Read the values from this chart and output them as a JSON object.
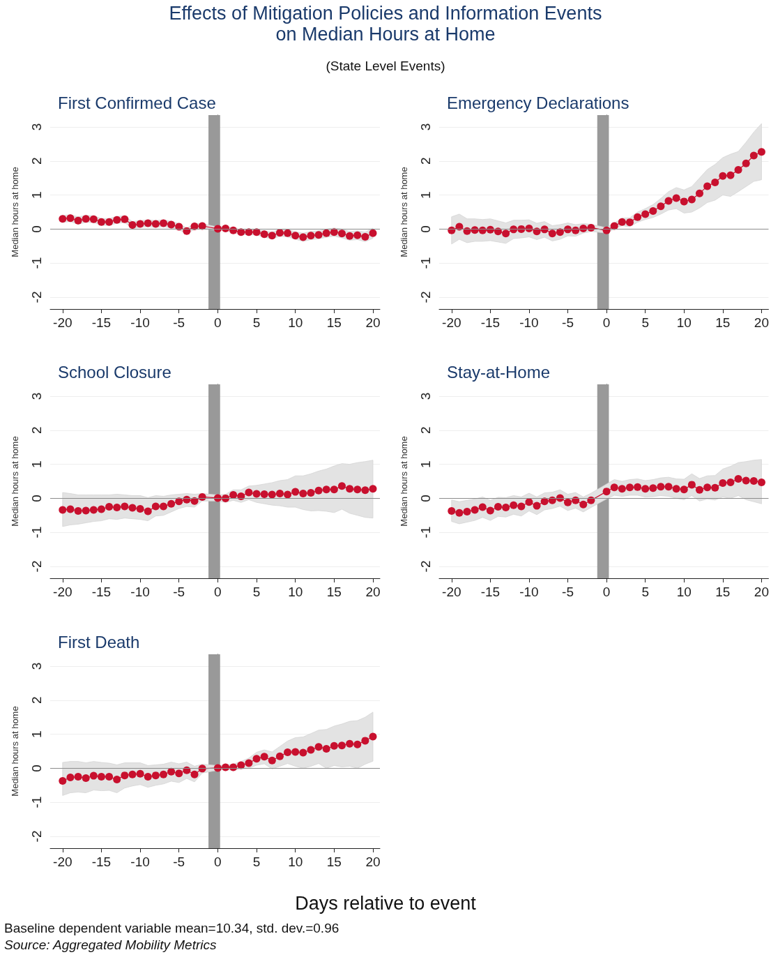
{
  "chart_data": [
    {
      "type": "other",
      "title": "Effects of Mitigation Policies and Information Events\non Median Hours at Home",
      "subtitle": "(State Level Events)",
      "annotations": [
        "Days relative to event",
        "Baseline dependent variable mean=10.34, std. dev.=0.96",
        "Source: Aggregated Mobility Metrics"
      ]
    },
    {
      "type": "line",
      "title": "First Confirmed Case",
      "ylabel": "Median hours at home",
      "xlim": [
        -21.6,
        20.9
      ],
      "xticks": [
        -20,
        -15,
        -10,
        -5,
        0,
        5,
        10,
        15,
        20
      ],
      "ylim": [
        -2.35,
        3.35
      ],
      "yticks": [
        -2,
        -1,
        0,
        1,
        2,
        3
      ],
      "grid": "y",
      "marker": "circle",
      "line_style": "solid",
      "ref_lines": [
        {
          "axis": "y",
          "value": 0,
          "color": "#8c8c8c"
        }
      ],
      "bands": [
        {
          "axis": "x",
          "from": -1.2,
          "to": 0.3,
          "color": "#999999"
        }
      ],
      "x": [
        -20,
        -19,
        -18,
        -17,
        -16,
        -15,
        -14,
        -13,
        -12,
        -11,
        -10,
        -9,
        -8,
        -7,
        -6,
        -5,
        -4,
        -3,
        -2,
        0,
        1,
        2,
        3,
        4,
        5,
        6,
        7,
        8,
        9,
        10,
        11,
        12,
        13,
        14,
        15,
        16,
        17,
        18,
        19,
        20
      ],
      "series": [
        {
          "color": "#c8102e",
          "values": [
            0.3,
            0.32,
            0.25,
            0.3,
            0.29,
            0.21,
            0.21,
            0.27,
            0.29,
            0.12,
            0.15,
            0.17,
            0.15,
            0.17,
            0.13,
            0.07,
            -0.06,
            0.08,
            0.09,
            0.01,
            0.02,
            -0.04,
            -0.09,
            -0.09,
            -0.09,
            -0.15,
            -0.19,
            -0.11,
            -0.12,
            -0.19,
            -0.24,
            -0.19,
            -0.17,
            -0.12,
            -0.09,
            -0.13,
            -0.2,
            -0.18,
            -0.23,
            -0.12
          ],
          "upper": [
            0.4,
            0.42,
            0.36,
            0.4,
            0.39,
            0.31,
            0.31,
            0.37,
            0.39,
            0.22,
            0.25,
            0.27,
            0.25,
            0.27,
            0.23,
            0.16,
            0.03,
            0.16,
            0.16,
            0.06,
            0.08,
            0.03,
            -0.02,
            -0.01,
            -0.01,
            -0.06,
            -0.09,
            -0.01,
            -0.01,
            -0.08,
            -0.12,
            -0.07,
            -0.05,
            0.0,
            0.03,
            0.0,
            -0.07,
            -0.05,
            -0.09,
            0.03
          ],
          "lower": [
            0.2,
            0.22,
            0.14,
            0.2,
            0.19,
            0.11,
            0.11,
            0.17,
            0.19,
            0.02,
            0.05,
            0.07,
            0.05,
            0.07,
            0.03,
            -0.02,
            -0.15,
            0.0,
            0.02,
            -0.04,
            -0.04,
            -0.11,
            -0.16,
            -0.17,
            -0.17,
            -0.24,
            -0.29,
            -0.21,
            -0.23,
            -0.3,
            -0.36,
            -0.31,
            -0.29,
            -0.24,
            -0.21,
            -0.26,
            -0.33,
            -0.31,
            -0.37,
            -0.27
          ]
        }
      ]
    },
    {
      "type": "line",
      "title": "Emergency Declarations",
      "ylabel": "Median hours at home",
      "xlim": [
        -21.6,
        20.9
      ],
      "xticks": [
        -20,
        -15,
        -10,
        -5,
        0,
        5,
        10,
        15,
        20
      ],
      "ylim": [
        -2.35,
        3.35
      ],
      "yticks": [
        -2,
        -1,
        0,
        1,
        2,
        3
      ],
      "grid": "y",
      "marker": "circle",
      "line_style": "solid",
      "ref_lines": [
        {
          "axis": "y",
          "value": 0,
          "color": "#8c8c8c"
        }
      ],
      "bands": [
        {
          "axis": "x",
          "from": -1.2,
          "to": 0.3,
          "color": "#999999"
        }
      ],
      "x": [
        -20,
        -19,
        -18,
        -17,
        -16,
        -15,
        -14,
        -13,
        -12,
        -11,
        -10,
        -9,
        -8,
        -7,
        -6,
        -5,
        -4,
        -3,
        -2,
        0,
        1,
        2,
        3,
        4,
        5,
        6,
        7,
        8,
        9,
        10,
        11,
        12,
        13,
        14,
        15,
        16,
        17,
        18,
        19,
        20
      ],
      "series": [
        {
          "color": "#c8102e",
          "values": [
            -0.04,
            0.07,
            -0.06,
            -0.03,
            -0.04,
            -0.02,
            -0.07,
            -0.13,
            -0.01,
            0,
            0.02,
            -0.07,
            -0.01,
            -0.13,
            -0.09,
            -0.01,
            -0.04,
            0.02,
            0.04,
            -0.04,
            0.09,
            0.21,
            0.2,
            0.35,
            0.44,
            0.53,
            0.67,
            0.83,
            0.91,
            0.81,
            0.87,
            1.05,
            1.26,
            1.37,
            1.56,
            1.58,
            1.74,
            1.93,
            2.16,
            2.27
          ],
          "upper": [
            0.36,
            0.44,
            0.3,
            0.3,
            0.28,
            0.3,
            0.24,
            0.18,
            0.26,
            0.26,
            0.27,
            0.17,
            0.22,
            0.1,
            0.13,
            0.18,
            0.13,
            0.16,
            0.14,
            0.04,
            0.18,
            0.32,
            0.33,
            0.5,
            0.6,
            0.72,
            0.9,
            1.1,
            1.22,
            1.15,
            1.25,
            1.5,
            1.75,
            1.9,
            2.1,
            2.2,
            2.28,
            2.55,
            2.85,
            3.1
          ],
          "lower": [
            -0.44,
            -0.3,
            -0.4,
            -0.36,
            -0.36,
            -0.34,
            -0.38,
            -0.42,
            -0.28,
            -0.26,
            -0.23,
            -0.31,
            -0.24,
            -0.35,
            -0.3,
            -0.2,
            -0.21,
            -0.12,
            -0.07,
            -0.12,
            0.0,
            0.1,
            0.07,
            0.2,
            0.28,
            0.34,
            0.44,
            0.56,
            0.6,
            0.47,
            0.5,
            0.62,
            0.78,
            0.85,
            1.0,
            0.96,
            1.1,
            1.25,
            1.4,
            1.45
          ]
        }
      ]
    },
    {
      "type": "line",
      "title": "School Closure",
      "ylabel": "Median hours at home",
      "xlim": [
        -21.6,
        20.9
      ],
      "xticks": [
        -20,
        -15,
        -10,
        -5,
        0,
        5,
        10,
        15,
        20
      ],
      "ylim": [
        -2.35,
        3.35
      ],
      "yticks": [
        -2,
        -1,
        0,
        1,
        2,
        3
      ],
      "grid": "y",
      "marker": "circle",
      "line_style": "solid",
      "ref_lines": [
        {
          "axis": "y",
          "value": 0,
          "color": "#8c8c8c"
        }
      ],
      "bands": [
        {
          "axis": "x",
          "from": -1.2,
          "to": 0.3,
          "color": "#999999"
        }
      ],
      "x": [
        -20,
        -19,
        -18,
        -17,
        -16,
        -15,
        -14,
        -13,
        -12,
        -11,
        -10,
        -9,
        -8,
        -7,
        -6,
        -5,
        -4,
        -3,
        -2,
        0,
        1,
        2,
        3,
        4,
        5,
        6,
        7,
        8,
        9,
        10,
        11,
        12,
        13,
        14,
        15,
        16,
        17,
        18,
        19,
        20
      ],
      "series": [
        {
          "color": "#c8102e",
          "values": [
            -0.34,
            -0.32,
            -0.37,
            -0.36,
            -0.34,
            -0.32,
            -0.25,
            -0.27,
            -0.24,
            -0.28,
            -0.31,
            -0.38,
            -0.24,
            -0.24,
            -0.16,
            -0.09,
            -0.04,
            -0.08,
            0.04,
            0.01,
            0,
            0.1,
            0.06,
            0.17,
            0.13,
            0.12,
            0.11,
            0.14,
            0.11,
            0.19,
            0.14,
            0.16,
            0.23,
            0.26,
            0.26,
            0.36,
            0.28,
            0.26,
            0.24,
            0.28
          ],
          "upper": [
            0.17,
            0.14,
            0.1,
            0.1,
            0.1,
            0.1,
            0.1,
            0.12,
            0.1,
            0.08,
            0.08,
            0.02,
            0.08,
            0.06,
            0.1,
            0.12,
            0.14,
            0.12,
            0.14,
            0.1,
            0.12,
            0.25,
            0.25,
            0.36,
            0.38,
            0.42,
            0.46,
            0.52,
            0.55,
            0.66,
            0.66,
            0.72,
            0.8,
            0.86,
            0.95,
            1.02,
            1.0,
            1.05,
            1.08,
            1.12
          ],
          "lower": [
            -0.83,
            -0.78,
            -0.76,
            -0.72,
            -0.68,
            -0.66,
            -0.6,
            -0.62,
            -0.58,
            -0.6,
            -0.62,
            -0.66,
            -0.52,
            -0.5,
            -0.4,
            -0.3,
            -0.24,
            -0.26,
            -0.08,
            -0.08,
            -0.12,
            -0.06,
            -0.12,
            -0.04,
            -0.12,
            -0.16,
            -0.2,
            -0.22,
            -0.26,
            -0.26,
            -0.33,
            -0.37,
            -0.36,
            -0.38,
            -0.42,
            -0.32,
            -0.44,
            -0.5,
            -0.56,
            -0.58
          ]
        }
      ]
    },
    {
      "type": "line",
      "title": "Stay-at-Home",
      "ylabel": "Median hours at home",
      "xlim": [
        -21.6,
        20.9
      ],
      "xticks": [
        -20,
        -15,
        -10,
        -5,
        0,
        5,
        10,
        15,
        20
      ],
      "ylim": [
        -2.35,
        3.35
      ],
      "yticks": [
        -2,
        -1,
        0,
        1,
        2,
        3
      ],
      "grid": "y",
      "marker": "circle",
      "line_style": "solid",
      "ref_lines": [
        {
          "axis": "y",
          "value": 0,
          "color": "#8c8c8c"
        }
      ],
      "bands": [
        {
          "axis": "x",
          "from": -1.2,
          "to": 0.3,
          "color": "#999999"
        }
      ],
      "x": [
        -20,
        -19,
        -18,
        -17,
        -16,
        -15,
        -14,
        -13,
        -12,
        -11,
        -10,
        -9,
        -8,
        -7,
        -6,
        -5,
        -4,
        -3,
        -2,
        0,
        1,
        2,
        3,
        4,
        5,
        6,
        7,
        8,
        9,
        10,
        11,
        12,
        13,
        14,
        15,
        16,
        17,
        18,
        19,
        20
      ],
      "series": [
        {
          "color": "#c8102e",
          "values": [
            -0.37,
            -0.43,
            -0.39,
            -0.34,
            -0.26,
            -0.36,
            -0.25,
            -0.27,
            -0.2,
            -0.24,
            -0.11,
            -0.22,
            -0.09,
            -0.06,
            0.01,
            -0.12,
            -0.06,
            -0.18,
            -0.06,
            0.2,
            0.32,
            0.28,
            0.32,
            0.33,
            0.28,
            0.3,
            0.34,
            0.34,
            0.28,
            0.26,
            0.4,
            0.25,
            0.32,
            0.31,
            0.45,
            0.47,
            0.57,
            0.52,
            0.51,
            0.47
          ],
          "upper": [
            -0.05,
            -0.1,
            -0.06,
            -0.02,
            0.04,
            -0.06,
            0.03,
            0.02,
            0.08,
            0.04,
            0.15,
            0.04,
            0.16,
            0.18,
            0.25,
            0.12,
            0.17,
            0.04,
            0.15,
            0.42,
            0.55,
            0.5,
            0.55,
            0.57,
            0.52,
            0.55,
            0.6,
            0.62,
            0.57,
            0.56,
            0.72,
            0.58,
            0.66,
            0.67,
            0.86,
            0.94,
            1.05,
            1.08,
            1.12,
            1.14
          ],
          "lower": [
            -0.68,
            -0.75,
            -0.7,
            -0.65,
            -0.56,
            -0.65,
            -0.53,
            -0.55,
            -0.47,
            -0.52,
            -0.37,
            -0.48,
            -0.34,
            -0.3,
            -0.23,
            -0.36,
            -0.29,
            -0.4,
            -0.27,
            -0.02,
            0.09,
            0.06,
            0.09,
            0.09,
            0.04,
            0.05,
            0.08,
            0.06,
            0.0,
            -0.04,
            0.08,
            -0.08,
            -0.02,
            -0.05,
            0.04,
            0.0,
            0.08,
            -0.04,
            -0.1,
            -0.16
          ]
        }
      ]
    },
    {
      "type": "line",
      "title": "First Death",
      "ylabel": "Median hours at home",
      "xlim": [
        -21.6,
        20.9
      ],
      "xticks": [
        -20,
        -15,
        -10,
        -5,
        0,
        5,
        10,
        15,
        20
      ],
      "ylim": [
        -2.35,
        3.35
      ],
      "yticks": [
        -2,
        -1,
        0,
        1,
        2,
        3
      ],
      "grid": "y",
      "marker": "circle",
      "line_style": "solid",
      "ref_lines": [
        {
          "axis": "y",
          "value": 0,
          "color": "#8c8c8c"
        }
      ],
      "bands": [
        {
          "axis": "x",
          "from": -1.2,
          "to": 0.3,
          "color": "#999999"
        }
      ],
      "x": [
        -20,
        -19,
        -18,
        -17,
        -16,
        -15,
        -14,
        -13,
        -12,
        -11,
        -10,
        -9,
        -8,
        -7,
        -6,
        -5,
        -4,
        -3,
        -2,
        0,
        1,
        2,
        3,
        4,
        5,
        6,
        7,
        8,
        9,
        10,
        11,
        12,
        13,
        14,
        15,
        16,
        17,
        18,
        19,
        20
      ],
      "series": [
        {
          "color": "#c8102e",
          "values": [
            -0.37,
            -0.27,
            -0.25,
            -0.29,
            -0.22,
            -0.25,
            -0.25,
            -0.33,
            -0.21,
            -0.18,
            -0.16,
            -0.25,
            -0.21,
            -0.18,
            -0.1,
            -0.15,
            -0.06,
            -0.18,
            -0.01,
            0.01,
            0.03,
            0.03,
            0.09,
            0.15,
            0.28,
            0.34,
            0.23,
            0.35,
            0.47,
            0.48,
            0.46,
            0.54,
            0.63,
            0.57,
            0.66,
            0.67,
            0.72,
            0.7,
            0.81,
            0.93
          ],
          "upper": [
            0.17,
            0.2,
            0.2,
            0.16,
            0.2,
            0.17,
            0.15,
            0.1,
            0.16,
            0.16,
            0.16,
            0.08,
            0.1,
            0.12,
            0.18,
            0.13,
            0.18,
            0.06,
            0.12,
            0.08,
            0.1,
            0.12,
            0.2,
            0.3,
            0.47,
            0.54,
            0.48,
            0.64,
            0.8,
            0.9,
            0.92,
            1.02,
            1.12,
            1.14,
            1.24,
            1.3,
            1.38,
            1.4,
            1.5,
            1.65
          ],
          "lower": [
            -0.8,
            -0.72,
            -0.7,
            -0.72,
            -0.64,
            -0.66,
            -0.65,
            -0.72,
            -0.58,
            -0.52,
            -0.48,
            -0.56,
            -0.5,
            -0.46,
            -0.38,
            -0.42,
            -0.3,
            -0.4,
            -0.14,
            -0.06,
            -0.04,
            -0.06,
            -0.02,
            0.0,
            0.09,
            0.13,
            -0.02,
            0.06,
            0.14,
            0.06,
            0.0,
            0.06,
            0.14,
            0.0,
            0.08,
            0.04,
            0.06,
            0.0,
            0.12,
            0.21
          ]
        }
      ]
    }
  ]
}
